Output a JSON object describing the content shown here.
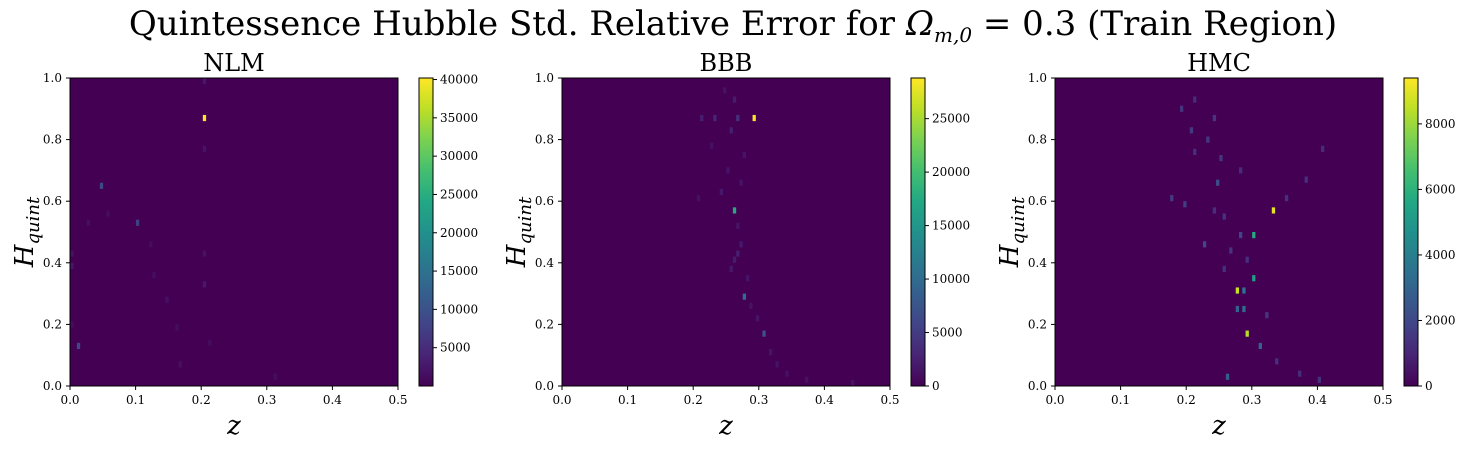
{
  "figure": {
    "title_pre": "Quintessence Hubble Std. Relative Error for ",
    "title_omega": "Ω",
    "title_sub": "m,0",
    "title_eq": " = 0.3",
    "title_post": " (Train Region)"
  },
  "chart_data": [
    {
      "type": "heatmap",
      "title": "NLM",
      "xlabel": "z",
      "ylabel": "H_quint",
      "ylabel_main": "H",
      "ylabel_sub": "quint",
      "xlim": [
        0.0,
        0.5
      ],
      "ylim": [
        0.0,
        1.0
      ],
      "xticks": [
        0.0,
        0.1,
        0.2,
        0.3,
        0.4,
        0.5
      ],
      "xtick_labels": [
        "0.0",
        "0.1",
        "0.2",
        "0.3",
        "0.4",
        "0.5"
      ],
      "yticks": [
        0.0,
        0.2,
        0.4,
        0.6,
        0.8,
        1.0
      ],
      "ytick_labels": [
        "0.0",
        "0.2",
        "0.4",
        "0.6",
        "0.8",
        "1.0"
      ],
      "colorbar": {
        "vmin": 0,
        "vmax": 40200,
        "ticks": [
          5000,
          10000,
          15000,
          20000,
          25000,
          30000,
          35000,
          40000
        ],
        "tick_labels": [
          "5000",
          "10000",
          "15000",
          "20000",
          "25000",
          "30000",
          "35000",
          "40000"
        ]
      },
      "bins": [
        {
          "z": 0.205,
          "h": 0.87,
          "v": 40000
        },
        {
          "z": 0.048,
          "h": 0.65,
          "v": 9000
        },
        {
          "z": 0.103,
          "h": 0.53,
          "v": 7500
        },
        {
          "z": 0.013,
          "h": 0.13,
          "v": 8500
        },
        {
          "z": 0.205,
          "h": 0.99,
          "v": 2500
        },
        {
          "z": 0.205,
          "h": 0.77,
          "v": 2000
        },
        {
          "z": 0.003,
          "h": 0.39,
          "v": 2500
        },
        {
          "z": 0.003,
          "h": 0.43,
          "v": 2000
        },
        {
          "z": 0.205,
          "h": 0.43,
          "v": 1800
        },
        {
          "z": 0.205,
          "h": 0.33,
          "v": 2600
        },
        {
          "z": 0.148,
          "h": 0.28,
          "v": 1700
        },
        {
          "z": 0.128,
          "h": 0.36,
          "v": 1500
        },
        {
          "z": 0.028,
          "h": 0.53,
          "v": 1500
        },
        {
          "z": 0.168,
          "h": 0.07,
          "v": 1600
        },
        {
          "z": 0.163,
          "h": 0.19,
          "v": 1400
        },
        {
          "z": 0.313,
          "h": 0.03,
          "v": 1300
        },
        {
          "z": 0.058,
          "h": 0.56,
          "v": 1300
        },
        {
          "z": 0.003,
          "h": 0.2,
          "v": 1300
        },
        {
          "z": 0.123,
          "h": 0.46,
          "v": 1200
        },
        {
          "z": 0.213,
          "h": 0.14,
          "v": 1200
        }
      ]
    },
    {
      "type": "heatmap",
      "title": "BBB",
      "xlabel": "z",
      "ylabel": "H_quint",
      "ylabel_main": "H",
      "ylabel_sub": "quint",
      "xlim": [
        0.0,
        0.5
      ],
      "ylim": [
        0.0,
        1.0
      ],
      "xticks": [
        0.0,
        0.1,
        0.2,
        0.3,
        0.4,
        0.5
      ],
      "xtick_labels": [
        "0.0",
        "0.1",
        "0.2",
        "0.3",
        "0.4",
        "0.5"
      ],
      "yticks": [
        0.0,
        0.2,
        0.4,
        0.6,
        0.8,
        1.0
      ],
      "ytick_labels": [
        "0.0",
        "0.2",
        "0.4",
        "0.6",
        "0.8",
        "1.0"
      ],
      "colorbar": {
        "vmin": 0,
        "vmax": 28800,
        "ticks": [
          0,
          5000,
          10000,
          15000,
          20000,
          25000
        ],
        "tick_labels": [
          "0",
          "5000",
          "10000",
          "15000",
          "20000",
          "25000"
        ]
      },
      "bins": [
        {
          "z": 0.293,
          "h": 0.87,
          "v": 28500
        },
        {
          "z": 0.263,
          "h": 0.57,
          "v": 17500
        },
        {
          "z": 0.278,
          "h": 0.29,
          "v": 10500
        },
        {
          "z": 0.308,
          "h": 0.17,
          "v": 7000
        },
        {
          "z": 0.268,
          "h": 0.87,
          "v": 4000
        },
        {
          "z": 0.233,
          "h": 0.87,
          "v": 3000
        },
        {
          "z": 0.213,
          "h": 0.87,
          "v": 2500
        },
        {
          "z": 0.258,
          "h": 0.83,
          "v": 2500
        },
        {
          "z": 0.263,
          "h": 0.93,
          "v": 2200
        },
        {
          "z": 0.268,
          "h": 0.43,
          "v": 2400
        },
        {
          "z": 0.263,
          "h": 0.41,
          "v": 2200
        },
        {
          "z": 0.273,
          "h": 0.46,
          "v": 2000
        },
        {
          "z": 0.258,
          "h": 0.38,
          "v": 1800
        },
        {
          "z": 0.243,
          "h": 0.63,
          "v": 1800
        },
        {
          "z": 0.253,
          "h": 0.7,
          "v": 1600
        },
        {
          "z": 0.273,
          "h": 0.66,
          "v": 1600
        },
        {
          "z": 0.283,
          "h": 0.35,
          "v": 1600
        },
        {
          "z": 0.298,
          "h": 0.22,
          "v": 1500
        },
        {
          "z": 0.318,
          "h": 0.11,
          "v": 1500
        },
        {
          "z": 0.328,
          "h": 0.07,
          "v": 1400
        },
        {
          "z": 0.343,
          "h": 0.04,
          "v": 1300
        },
        {
          "z": 0.288,
          "h": 0.26,
          "v": 1400
        },
        {
          "z": 0.268,
          "h": 0.52,
          "v": 1500
        },
        {
          "z": 0.278,
          "h": 0.75,
          "v": 1500
        },
        {
          "z": 0.248,
          "h": 0.96,
          "v": 1400
        },
        {
          "z": 0.208,
          "h": 0.61,
          "v": 1300
        },
        {
          "z": 0.443,
          "h": 0.01,
          "v": 1400
        },
        {
          "z": 0.373,
          "h": 0.02,
          "v": 1300
        },
        {
          "z": 0.228,
          "h": 0.78,
          "v": 1300
        }
      ]
    },
    {
      "type": "heatmap",
      "title": "HMC",
      "xlabel": "z",
      "ylabel": "H_quint",
      "ylabel_main": "H",
      "ylabel_sub": "quint",
      "xlim": [
        0.0,
        0.5
      ],
      "ylim": [
        0.0,
        1.0
      ],
      "xticks": [
        0.0,
        0.1,
        0.2,
        0.3,
        0.4,
        0.5
      ],
      "xtick_labels": [
        "0.0",
        "0.1",
        "0.2",
        "0.3",
        "0.4",
        "0.5"
      ],
      "yticks": [
        0.0,
        0.2,
        0.4,
        0.6,
        0.8,
        1.0
      ],
      "ytick_labels": [
        "0.0",
        "0.2",
        "0.4",
        "0.6",
        "0.8",
        "1.0"
      ],
      "colorbar": {
        "vmin": 0,
        "vmax": 9400,
        "ticks": [
          0,
          2000,
          4000,
          6000,
          8000
        ],
        "tick_labels": [
          "0",
          "2000",
          "4000",
          "6000",
          "8000"
        ]
      },
      "bins": [
        {
          "z": 0.333,
          "h": 0.57,
          "v": 9000
        },
        {
          "z": 0.278,
          "h": 0.31,
          "v": 8600
        },
        {
          "z": 0.293,
          "h": 0.17,
          "v": 8400
        },
        {
          "z": 0.303,
          "h": 0.49,
          "v": 5700
        },
        {
          "z": 0.303,
          "h": 0.35,
          "v": 5200
        },
        {
          "z": 0.288,
          "h": 0.31,
          "v": 3600
        },
        {
          "z": 0.288,
          "h": 0.25,
          "v": 3300
        },
        {
          "z": 0.278,
          "h": 0.25,
          "v": 3000
        },
        {
          "z": 0.313,
          "h": 0.13,
          "v": 3000
        },
        {
          "z": 0.263,
          "h": 0.03,
          "v": 2800
        },
        {
          "z": 0.248,
          "h": 0.66,
          "v": 2200
        },
        {
          "z": 0.228,
          "h": 0.46,
          "v": 2100
        },
        {
          "z": 0.283,
          "h": 0.49,
          "v": 1900
        },
        {
          "z": 0.198,
          "h": 0.59,
          "v": 1700
        },
        {
          "z": 0.178,
          "h": 0.61,
          "v": 1600
        },
        {
          "z": 0.208,
          "h": 0.83,
          "v": 1600
        },
        {
          "z": 0.233,
          "h": 0.8,
          "v": 1500
        },
        {
          "z": 0.243,
          "h": 0.87,
          "v": 1500
        },
        {
          "z": 0.193,
          "h": 0.9,
          "v": 1400
        },
        {
          "z": 0.253,
          "h": 0.74,
          "v": 1500
        },
        {
          "z": 0.268,
          "h": 0.44,
          "v": 1400
        },
        {
          "z": 0.258,
          "h": 0.55,
          "v": 1400
        },
        {
          "z": 0.213,
          "h": 0.76,
          "v": 1300
        },
        {
          "z": 0.383,
          "h": 0.67,
          "v": 1300
        },
        {
          "z": 0.408,
          "h": 0.77,
          "v": 1200
        },
        {
          "z": 0.353,
          "h": 0.61,
          "v": 1300
        },
        {
          "z": 0.323,
          "h": 0.23,
          "v": 1500
        },
        {
          "z": 0.338,
          "h": 0.08,
          "v": 1300
        },
        {
          "z": 0.373,
          "h": 0.04,
          "v": 1200
        },
        {
          "z": 0.403,
          "h": 0.02,
          "v": 1300
        },
        {
          "z": 0.243,
          "h": 0.57,
          "v": 1300
        },
        {
          "z": 0.213,
          "h": 0.93,
          "v": 1200
        },
        {
          "z": 0.283,
          "h": 0.7,
          "v": 1200
        },
        {
          "z": 0.258,
          "h": 0.38,
          "v": 1300
        },
        {
          "z": 0.293,
          "h": 0.41,
          "v": 1300
        }
      ]
    }
  ]
}
